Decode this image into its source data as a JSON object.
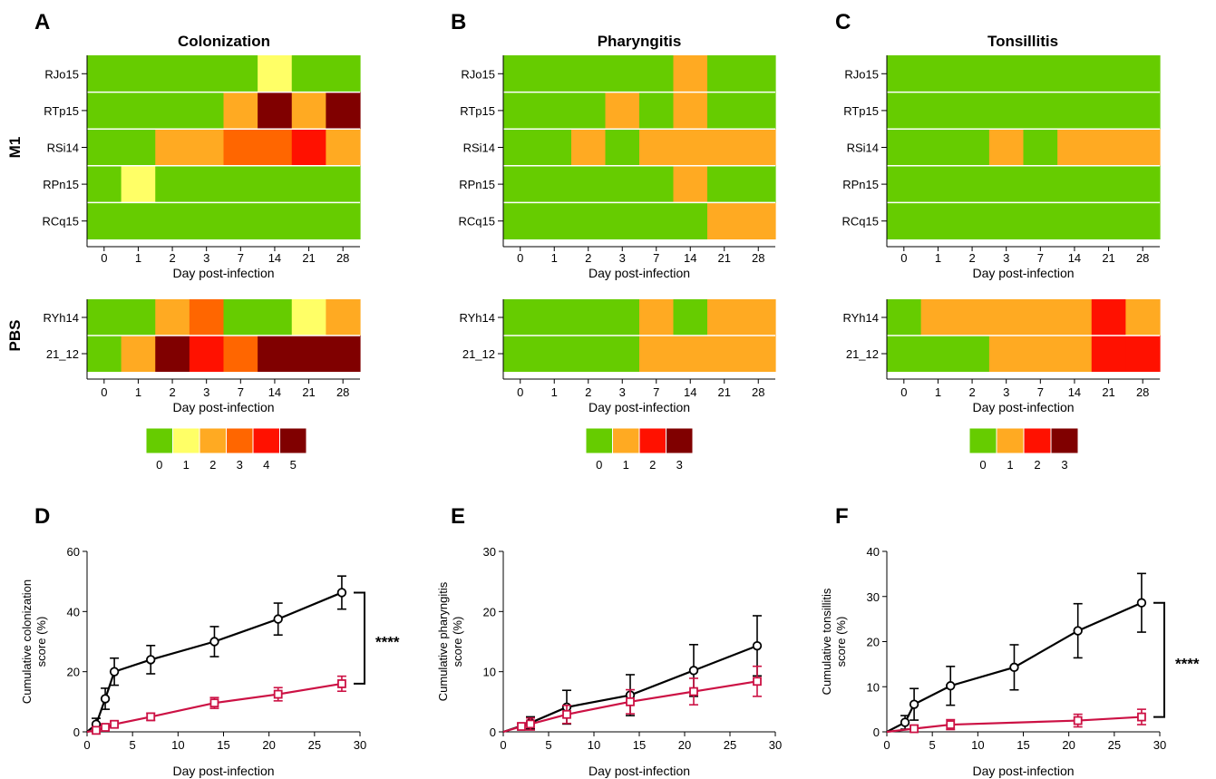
{
  "chart_data": [
    {
      "panel": "A",
      "type": "heatmap",
      "title": "Colonization",
      "xlabel": "Day post-infection",
      "x_categories": [
        "0",
        "1",
        "2",
        "3",
        "7",
        "14",
        "21",
        "28"
      ],
      "groups": [
        {
          "label": "M1",
          "rows": [
            {
              "name": "RJo15",
              "values": [
                0,
                0,
                0,
                0,
                0,
                1,
                0,
                0
              ]
            },
            {
              "name": "RTp15",
              "values": [
                0,
                0,
                0,
                0,
                2,
                5,
                2,
                5
              ]
            },
            {
              "name": "RSi14",
              "values": [
                0,
                0,
                2,
                2,
                3,
                3,
                4,
                2
              ]
            },
            {
              "name": "RPn15",
              "values": [
                0,
                1,
                0,
                0,
                0,
                0,
                0,
                0
              ]
            },
            {
              "name": "RCq15",
              "values": [
                0,
                0,
                0,
                0,
                0,
                0,
                0,
                0
              ]
            }
          ]
        },
        {
          "label": "PBS",
          "rows": [
            {
              "name": "RYh14",
              "values": [
                0,
                0,
                2,
                3,
                0,
                0,
                1,
                2
              ]
            },
            {
              "name": "21_12",
              "values": [
                0,
                2,
                5,
                4,
                3,
                5,
                5,
                5
              ]
            }
          ]
        }
      ],
      "scale": {
        "labels": [
          "0",
          "1",
          "2",
          "3",
          "4",
          "5"
        ],
        "colors": [
          "#66cc00",
          "#ffff66",
          "#ffaa22",
          "#ff6600",
          "#ff1100",
          "#800000"
        ]
      }
    },
    {
      "panel": "B",
      "type": "heatmap",
      "title": "Pharyngitis",
      "xlabel": "Day post-infection",
      "x_categories": [
        "0",
        "1",
        "2",
        "3",
        "7",
        "14",
        "21",
        "28"
      ],
      "groups": [
        {
          "label": "",
          "rows": [
            {
              "name": "RJo15",
              "values": [
                0,
                0,
                0,
                0,
                0,
                1,
                0,
                0
              ]
            },
            {
              "name": "RTp15",
              "values": [
                0,
                0,
                0,
                1,
                0,
                1,
                0,
                0
              ]
            },
            {
              "name": "RSi14",
              "values": [
                0,
                0,
                1,
                0,
                1,
                1,
                1,
                1
              ]
            },
            {
              "name": "RPn15",
              "values": [
                0,
                0,
                0,
                0,
                0,
                1,
                0,
                0
              ]
            },
            {
              "name": "RCq15",
              "values": [
                0,
                0,
                0,
                0,
                0,
                0,
                1,
                1
              ]
            }
          ]
        },
        {
          "label": "",
          "rows": [
            {
              "name": "RYh14",
              "values": [
                0,
                0,
                0,
                0,
                1,
                0,
                1,
                1
              ]
            },
            {
              "name": "21_12",
              "values": [
                0,
                0,
                0,
                0,
                1,
                1,
                1,
                1
              ]
            }
          ]
        }
      ],
      "scale": {
        "labels": [
          "0",
          "1",
          "2",
          "3"
        ],
        "colors": [
          "#66cc00",
          "#ffaa22",
          "#ff1100",
          "#800000"
        ]
      }
    },
    {
      "panel": "C",
      "type": "heatmap",
      "title": "Tonsillitis",
      "xlabel": "Day post-infection",
      "x_categories": [
        "0",
        "1",
        "2",
        "3",
        "7",
        "14",
        "21",
        "28"
      ],
      "groups": [
        {
          "label": "",
          "rows": [
            {
              "name": "RJo15",
              "values": [
                0,
                0,
                0,
                0,
                0,
                0,
                0,
                0
              ]
            },
            {
              "name": "RTp15",
              "values": [
                0,
                0,
                0,
                0,
                0,
                0,
                0,
                0
              ]
            },
            {
              "name": "RSi14",
              "values": [
                0,
                0,
                0,
                1,
                0,
                1,
                1,
                1
              ]
            },
            {
              "name": "RPn15",
              "values": [
                0,
                0,
                0,
                0,
                0,
                0,
                0,
                0
              ]
            },
            {
              "name": "RCq15",
              "values": [
                0,
                0,
                0,
                0,
                0,
                0,
                0,
                0
              ]
            }
          ]
        },
        {
          "label": "",
          "rows": [
            {
              "name": "RYh14",
              "values": [
                0,
                1,
                1,
                1,
                1,
                1,
                2,
                1
              ]
            },
            {
              "name": "21_12",
              "values": [
                0,
                0,
                0,
                1,
                1,
                1,
                2,
                2
              ]
            }
          ]
        }
      ],
      "scale": {
        "labels": [
          "0",
          "1",
          "2",
          "3"
        ],
        "colors": [
          "#66cc00",
          "#ffaa22",
          "#ff1100",
          "#800000"
        ]
      }
    },
    {
      "panel": "D",
      "type": "line",
      "xlabel": "Day post-infection",
      "ylabel": "Cumulative colonization score (%)",
      "xlim": [
        0,
        30
      ],
      "ylim": [
        0,
        60
      ],
      "xticks": [
        0,
        5,
        10,
        15,
        20,
        25,
        30
      ],
      "yticks": [
        0,
        20,
        40,
        60
      ],
      "series": [
        {
          "color": "#000000",
          "marker": "circle",
          "x": [
            0,
            1,
            2,
            3,
            7,
            14,
            21,
            28
          ],
          "y": [
            0,
            2.5,
            11,
            20,
            24,
            30,
            37.5,
            46.3
          ],
          "err": [
            0,
            2,
            3.5,
            4.5,
            4.7,
            5,
            5.3,
            5.5
          ]
        },
        {
          "color": "#cc1144",
          "marker": "square",
          "x": [
            0,
            1,
            2,
            3,
            7,
            14,
            21,
            28
          ],
          "y": [
            0,
            0.5,
            1.5,
            2.5,
            5,
            9.6,
            12.5,
            16
          ],
          "err": [
            0,
            0.5,
            0.7,
            1,
            1.2,
            1.8,
            2.2,
            2.5
          ]
        }
      ],
      "annotation": "****"
    },
    {
      "panel": "E",
      "type": "line",
      "xlabel": "Day post-infection",
      "ylabel": "Cumulative pharyngitis score (%)",
      "xlim": [
        0,
        30
      ],
      "ylim": [
        0,
        30
      ],
      "xticks": [
        0,
        5,
        10,
        15,
        20,
        25,
        30
      ],
      "yticks": [
        0,
        10,
        20,
        30
      ],
      "series": [
        {
          "color": "#000000",
          "marker": "circle",
          "x": [
            0,
            3,
            7,
            14,
            21,
            28
          ],
          "y": [
            0,
            1.5,
            4.1,
            6.1,
            10.2,
            14.3
          ],
          "err": [
            0,
            1,
            2.8,
            3.4,
            4.3,
            5
          ]
        },
        {
          "color": "#cc1144",
          "marker": "square",
          "x": [
            0,
            2,
            3,
            7,
            14,
            21,
            28
          ],
          "y": [
            0,
            0.9,
            1.3,
            2.9,
            5,
            6.7,
            8.4
          ],
          "err": [
            0,
            0.5,
            1,
            1.5,
            2,
            2.2,
            2.5
          ]
        }
      ],
      "annotation": ""
    },
    {
      "panel": "F",
      "type": "line",
      "xlabel": "Day post-infection",
      "ylabel": "Cumulative tonsillitis score (%)",
      "xlim": [
        0,
        30
      ],
      "ylim": [
        0,
        40
      ],
      "xticks": [
        0,
        5,
        10,
        15,
        20,
        25,
        30
      ],
      "yticks": [
        0,
        10,
        20,
        30,
        40
      ],
      "series": [
        {
          "color": "#000000",
          "marker": "circle",
          "x": [
            0,
            2,
            3,
            7,
            14,
            21,
            28
          ],
          "y": [
            0,
            2.1,
            6.1,
            10.2,
            14.3,
            22.4,
            28.6
          ],
          "err": [
            0,
            1.5,
            3.5,
            4.3,
            5,
            6,
            6.5
          ]
        },
        {
          "color": "#cc1144",
          "marker": "square",
          "x": [
            0,
            3,
            7,
            21,
            28
          ],
          "y": [
            0,
            0.7,
            1.6,
            2.5,
            3.3
          ],
          "err": [
            0,
            0.7,
            1.1,
            1.4,
            1.7
          ]
        }
      ],
      "annotation": "****"
    }
  ]
}
